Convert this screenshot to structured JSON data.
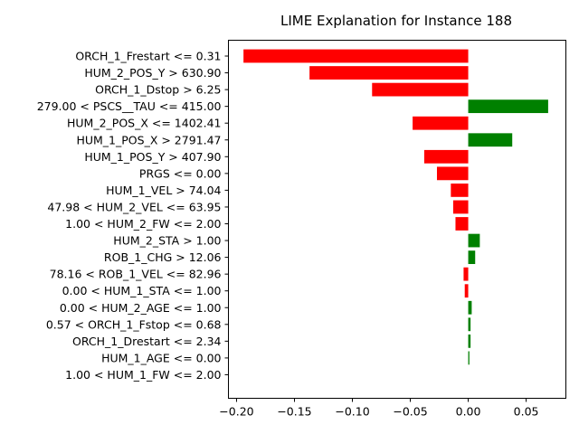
{
  "chart_data": {
    "type": "bar",
    "orientation": "horizontal",
    "title": "LIME Explanation for Instance 188",
    "xlabel": "",
    "ylabel": "",
    "xlim": [
      -0.207,
      0.0843
    ],
    "xticks": [
      -0.2,
      -0.15,
      -0.1,
      -0.05,
      0.0,
      0.05
    ],
    "xtick_labels": [
      "−0.20",
      "−0.15",
      "−0.10",
      "−0.05",
      "0.00",
      "0.05"
    ],
    "grid": false,
    "positive_color": "#008000",
    "negative_color": "#ff0000",
    "categories": [
      "ORCH_1_Frestart <= 0.31",
      "HUM_2_POS_Y > 630.90",
      "ORCH_1_Dstop > 6.25",
      "279.00 < PSCS__TAU <= 415.00",
      "HUM_2_POS_X <= 1402.41",
      "HUM_1_POS_X > 2791.47",
      "HUM_1_POS_Y > 407.90",
      "PRGS <= 0.00",
      "HUM_1_VEL > 74.04",
      "47.98 < HUM_2_VEL <= 63.95",
      "1.00 < HUM_2_FW <= 2.00",
      "HUM_2_STA > 1.00",
      "ROB_1_CHG > 12.06",
      "78.16 < ROB_1_VEL <= 82.96",
      "0.00 < HUM_1_STA <= 1.00",
      "0.00 < HUM_2_AGE <= 1.00",
      "0.57 < ORCH_1_Fstop <= 0.68",
      "ORCH_1_Drestart <= 2.34",
      "HUM_1_AGE <= 0.00",
      "1.00 < HUM_1_FW <= 2.00"
    ],
    "values": [
      -0.194,
      -0.137,
      -0.083,
      0.069,
      -0.048,
      0.038,
      -0.038,
      -0.027,
      -0.015,
      -0.013,
      -0.011,
      0.01,
      0.006,
      -0.004,
      -0.003,
      0.003,
      0.002,
      0.002,
      0.001,
      0.0
    ]
  }
}
